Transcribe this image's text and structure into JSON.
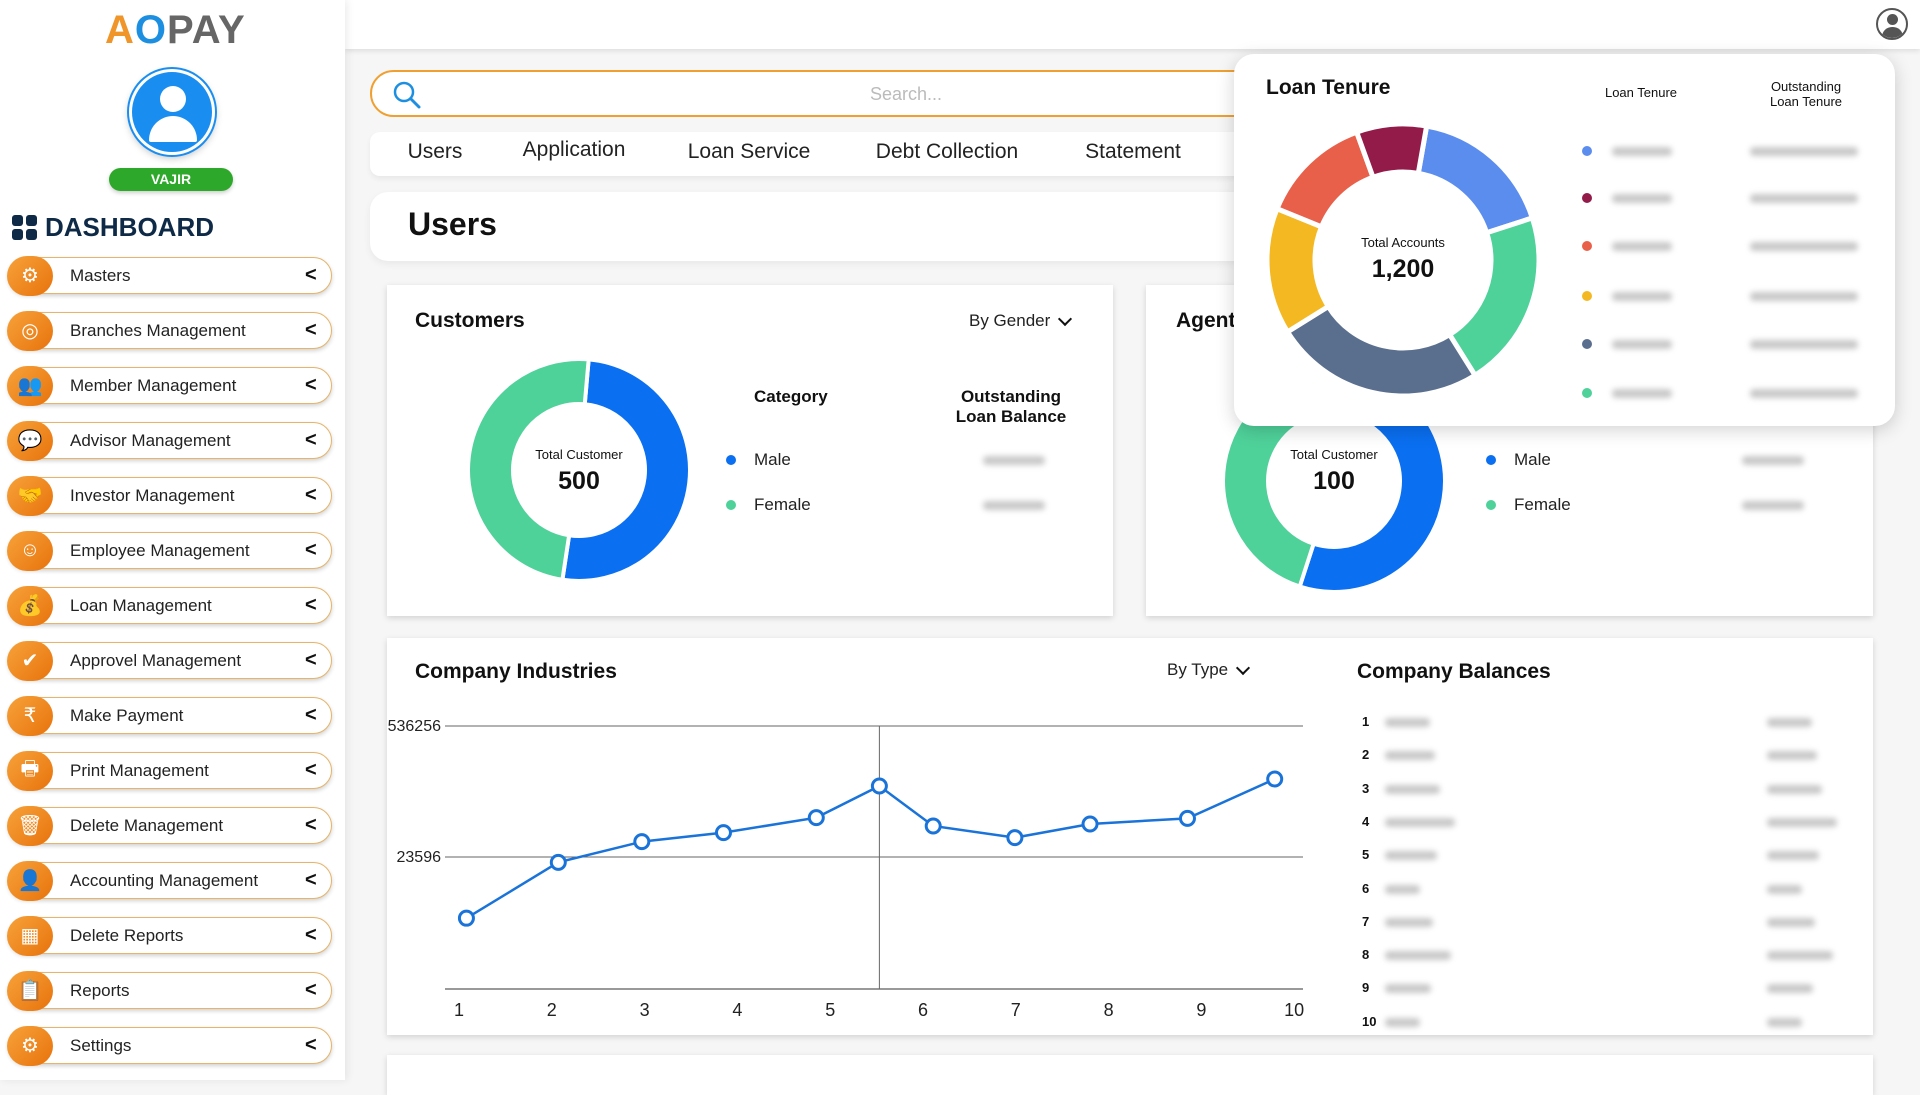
{
  "brand": {
    "logo_text": "AOPAY",
    "user_name": "VAJIR",
    "dashboard_label": "DASHBOARD"
  },
  "sidebar": {
    "items": [
      {
        "label": "Masters",
        "icon": "user-gear-icon",
        "glyph": "⚙"
      },
      {
        "label": "Branches Management",
        "icon": "globe-pin-icon",
        "glyph": "◎"
      },
      {
        "label": "Member Management",
        "icon": "group-icon",
        "glyph": "👥"
      },
      {
        "label": "Advisor Management",
        "icon": "advisor-chat-icon",
        "glyph": "💬"
      },
      {
        "label": "Investor Management",
        "icon": "handshake-icon",
        "glyph": "🤝"
      },
      {
        "label": "Employee Management",
        "icon": "employees-icon",
        "glyph": "☺"
      },
      {
        "label": "Loan Management",
        "icon": "money-bag-icon",
        "glyph": "💰"
      },
      {
        "label": "Approvel Management",
        "icon": "approval-badge-icon",
        "glyph": "✔"
      },
      {
        "label": "Make Payment",
        "icon": "rupee-icon",
        "glyph": "₹"
      },
      {
        "label": "Print Management",
        "icon": "printer-icon",
        "glyph": "🖶"
      },
      {
        "label": "Delete Management",
        "icon": "trash-icon",
        "glyph": "🗑"
      },
      {
        "label": "Accounting Management",
        "icon": "accountant-icon",
        "glyph": "👤"
      },
      {
        "label": "Delete Reports",
        "icon": "report-chart-icon",
        "glyph": "▦"
      },
      {
        "label": "Reports",
        "icon": "report-icon",
        "glyph": "📋"
      },
      {
        "label": "Settings",
        "icon": "settings-icon",
        "glyph": "⚙"
      }
    ]
  },
  "search": {
    "placeholder": "Search..."
  },
  "tabs": [
    "Users",
    "Application",
    "Loan Service",
    "Debt Collection",
    "Statement"
  ],
  "page_title": "Users",
  "customers": {
    "title": "Customers",
    "filter": "By Gender",
    "center_label": "Total Customer",
    "center_value": "500",
    "col_category": "Category",
    "col_balance_1": "Outstanding",
    "col_balance_2": "Loan Balance",
    "segments": [
      {
        "label": "Male",
        "share": 51,
        "color": "#0a6ff0"
      },
      {
        "label": "Female",
        "share": 49,
        "color": "#4fd19a"
      }
    ]
  },
  "agents": {
    "title": "Agent",
    "center_label": "Total Customer",
    "center_value": "100",
    "segments": [
      {
        "label": "Male",
        "share": 55,
        "color": "#0a6ff0"
      },
      {
        "label": "Female",
        "share": 45,
        "color": "#4fd19a"
      }
    ]
  },
  "loan_tenure": {
    "title": "Loan Tenure",
    "center_label": "Total Accounts",
    "center_value": "1,200",
    "col_1": "Loan Tenure",
    "col_2_line1": "Outstanding",
    "col_2_line2": "Loan Tenure",
    "segments": [
      {
        "share": 17.2,
        "color": "#5b8def"
      },
      {
        "share": 21.1,
        "color": "#4fd19a"
      },
      {
        "share": 25,
        "color": "#5a6e8e"
      },
      {
        "share": 15,
        "color": "#f4b822"
      },
      {
        "share": 13.3,
        "color": "#e8604a"
      },
      {
        "share": 8.3,
        "color": "#931b4a"
      }
    ],
    "legend_colors": [
      "#5b8def",
      "#931b4a",
      "#e8604a",
      "#f4b822",
      "#5a6e8e",
      "#4fd19a"
    ]
  },
  "industries": {
    "title": "Company Industries",
    "filter": "By Type"
  },
  "chart_data": {
    "type": "line",
    "title": "Company Industries",
    "x_ticks": [
      "1",
      "2",
      "3",
      "4",
      "5",
      "6",
      "7",
      "8",
      "9",
      "10"
    ],
    "y_ticks": [
      "536256",
      "23596"
    ],
    "grid": true,
    "color": "#1a73d9",
    "hover_x": 5.53,
    "points": [
      {
        "x": 1.08,
        "y": 12660
      },
      {
        "x": 2.07,
        "y": 22640
      },
      {
        "x": 2.97,
        "y": 83600
      },
      {
        "x": 3.85,
        "y": 118900
      },
      {
        "x": 4.85,
        "y": 177500
      },
      {
        "x": 5.53,
        "y": 301500
      },
      {
        "x": 6.11,
        "y": 145000
      },
      {
        "x": 6.99,
        "y": 99300
      },
      {
        "x": 7.8,
        "y": 152700
      },
      {
        "x": 8.85,
        "y": 174900
      },
      {
        "x": 9.79,
        "y": 328700
      }
    ]
  },
  "balances": {
    "title": "Company Balances",
    "rows": [
      "1",
      "2",
      "3",
      "4",
      "5",
      "6",
      "7",
      "8",
      "9",
      "10"
    ]
  }
}
